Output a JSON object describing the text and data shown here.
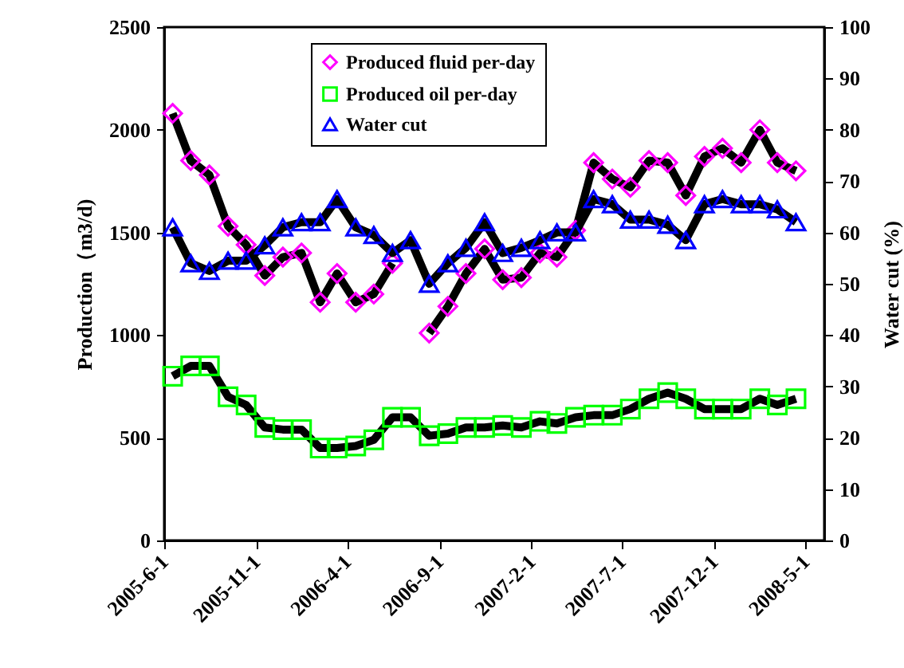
{
  "chart_data": {
    "type": "line",
    "xlabel": null,
    "ylabel": "Production（m3/d)",
    "y2label": "Water cut (%)",
    "x": [
      "2005-06-15",
      "2005-07-15",
      "2005-08-15",
      "2005-09-15",
      "2005-10-15",
      "2005-11-15",
      "2005-12-15",
      "2006-01-15",
      "2006-02-15",
      "2006-03-15",
      "2006-04-15",
      "2006-05-15",
      "2006-06-15",
      "2006-07-15",
      "2006-08-15",
      "2006-09-15",
      "2006-10-15",
      "2006-11-15",
      "2006-12-15",
      "2007-01-15",
      "2007-02-15",
      "2007-03-15",
      "2007-04-15",
      "2007-05-15",
      "2007-06-15",
      "2007-07-15",
      "2007-08-15",
      "2007-09-15",
      "2007-10-15",
      "2007-11-15",
      "2007-12-15",
      "2008-01-15",
      "2008-02-15",
      "2008-03-15",
      "2008-04-15"
    ],
    "series": [
      {
        "name": "Produced fluid per-day",
        "color": "#ff00ff",
        "marker": "diamond",
        "values": [
          2080,
          1850,
          1780,
          1530,
          1440,
          1290,
          1380,
          1400,
          1160,
          1300,
          1160,
          1200,
          1350,
          null,
          1010,
          1140,
          1300,
          1420,
          1270,
          1280,
          1400,
          1380,
          1510,
          1840,
          1760,
          1720,
          1850,
          1840,
          1680,
          1870,
          1910,
          1840,
          2000,
          1840,
          1800
        ]
      },
      {
        "name": "Produced oil per-day",
        "color": "#00ff00",
        "marker": "square",
        "values": [
          800,
          850,
          850,
          700,
          660,
          550,
          540,
          540,
          450,
          450,
          460,
          490,
          600,
          600,
          510,
          520,
          550,
          550,
          560,
          550,
          580,
          570,
          600,
          610,
          610,
          640,
          690,
          720,
          690,
          640,
          640,
          640,
          690,
          660,
          690
        ]
      },
      {
        "name": "Water cut",
        "color": "#0000ff",
        "marker": "triangle",
        "axis": "y2",
        "values": [
          61,
          54,
          52.5,
          54.5,
          54.5,
          57.5,
          61,
          62,
          62,
          66.5,
          61,
          59.5,
          56,
          58.5,
          50,
          54,
          57,
          62,
          56,
          57,
          58.5,
          60,
          60,
          66.5,
          65.5,
          62.5,
          62.5,
          61.5,
          58.5,
          65.5,
          66.5,
          65.5,
          65.5,
          64.5,
          62
        ]
      }
    ],
    "xlim": [
      "2005-06-01",
      "2008-06-01"
    ],
    "xticks": [
      {
        "value": "2005-06-01",
        "label": "2005-6-1"
      },
      {
        "value": "2005-11-01",
        "label": "2005-11-1"
      },
      {
        "value": "2006-04-01",
        "label": "2006-4-1"
      },
      {
        "value": "2006-09-01",
        "label": "2006-9-1"
      },
      {
        "value": "2007-02-01",
        "label": "2007-2-1"
      },
      {
        "value": "2007-07-01",
        "label": "2007-7-1"
      },
      {
        "value": "2007-12-01",
        "label": "2007-12-1"
      },
      {
        "value": "2008-05-01",
        "label": "2008-5-1"
      }
    ],
    "ylim": [
      0,
      2500
    ],
    "yticks": [
      0,
      500,
      1000,
      1500,
      2000,
      2500
    ],
    "y2lim": [
      0,
      100
    ],
    "y2ticks": [
      0,
      10,
      20,
      30,
      40,
      50,
      60,
      70,
      80,
      90,
      100
    ],
    "grid": false,
    "legend": "top",
    "line_style": "solid"
  }
}
